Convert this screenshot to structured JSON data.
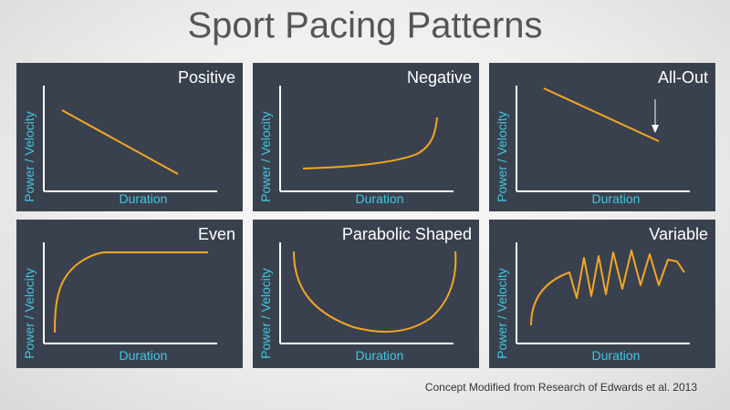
{
  "title": "Sport Pacing Patterns",
  "axis": {
    "ylabel": "Power / Velocity",
    "xlabel": "Duration"
  },
  "colors": {
    "panel_bg": "#3a414e",
    "curve": "#f5a623",
    "axis_label": "#3ec6e0",
    "axis_line": "#ffffff"
  },
  "panels": [
    {
      "title": "Positive",
      "pattern": "linear-decreasing"
    },
    {
      "title": "Negative",
      "pattern": "accelerating-increase"
    },
    {
      "title": "All-Out",
      "pattern": "linear-decreasing-with-arrow"
    },
    {
      "title": "Even",
      "pattern": "fast-rise-then-plateau"
    },
    {
      "title": "Parabolic Shaped",
      "pattern": "u-shape"
    },
    {
      "title": "Variable",
      "pattern": "rise-then-oscillation"
    }
  ],
  "footnote": "Concept Modified from Research of Edwards et al. 2013"
}
